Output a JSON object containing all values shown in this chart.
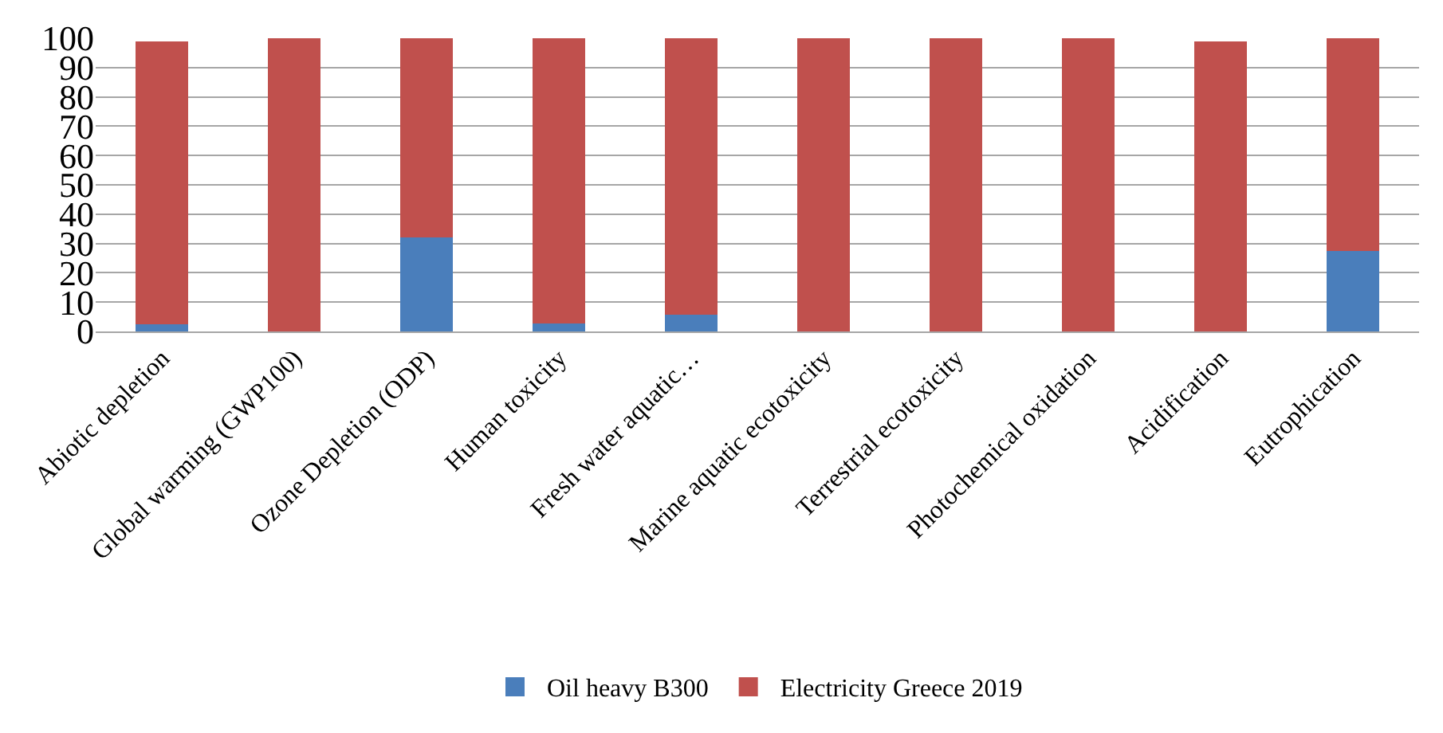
{
  "chart_data": {
    "type": "bar",
    "stacked": true,
    "categories": [
      "Abiotic depletion",
      "Global warming (GWP100)",
      "Ozone Depletion (ODP)",
      "Human toxicity",
      "Fresh water aquatic…",
      "Marine aquatic ecotoxicity",
      "Terrestrial ecotoxicity",
      "Photochemical oxidation",
      "Acidification",
      "Eutrophication"
    ],
    "series": [
      {
        "name": "Oil heavy B300",
        "color": "#4a7ebb",
        "values": [
          2.5,
          0,
          32,
          2.6,
          5.6,
          0,
          0,
          0,
          0,
          27.5
        ]
      },
      {
        "name": "Electricity Greece 2019",
        "color": "#c0504d",
        "values": [
          96.5,
          100,
          68,
          97.4,
          94.4,
          100,
          100,
          100,
          99,
          72.5
        ]
      }
    ],
    "ylim": [
      0,
      100
    ],
    "yticks": [
      0,
      10,
      20,
      30,
      40,
      50,
      60,
      70,
      80,
      90,
      100
    ],
    "grid": "y",
    "legend": "bottom"
  }
}
